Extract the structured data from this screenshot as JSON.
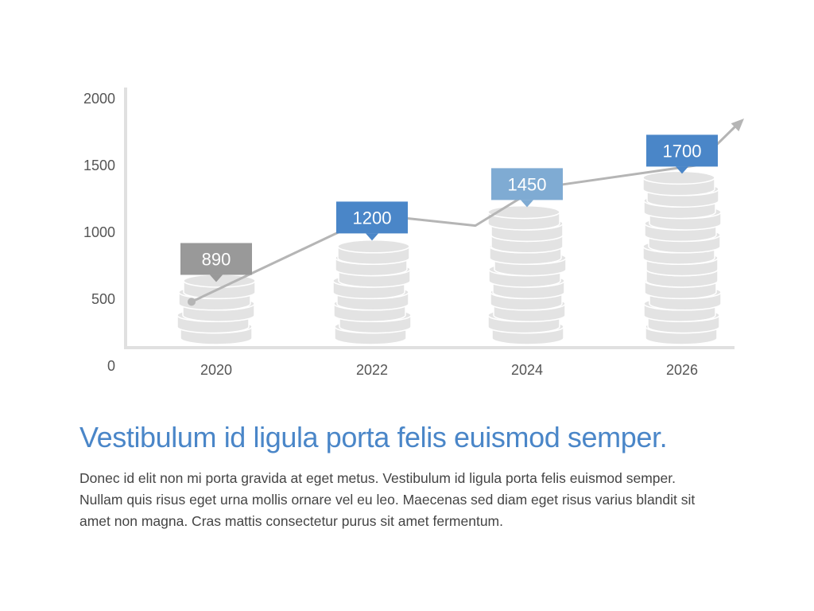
{
  "chart_data": {
    "type": "bar",
    "categories": [
      "2020",
      "2022",
      "2024",
      "2026"
    ],
    "values": [
      890,
      1200,
      1450,
      1700
    ],
    "line_values": [
      480,
      1130,
      1050,
      1330,
      1500
    ],
    "yticks": [
      0,
      500,
      1000,
      1500,
      2000
    ],
    "ylim": [
      0,
      2000
    ],
    "title": "",
    "xlabel": "",
    "ylabel": "",
    "grid": false,
    "legend": "none",
    "callout_colors": [
      "#999999",
      "#4a86c8",
      "#7fabd3",
      "#4a86c8"
    ],
    "coin_color": "#e3e3e3",
    "line_color": "#b5b5b5",
    "axis_color": "#e0e0e0"
  },
  "heading": "Vestibulum id ligula porta felis euismod semper.",
  "body": "Donec id elit non mi porta gravida at eget metus. Vestibulum id ligula porta felis euismod semper. Nullam quis risus eget urna mollis ornare vel eu leo. Maecenas sed diam eget risus varius blandit sit amet non magna. Cras mattis consectetur purus sit amet fermentum."
}
